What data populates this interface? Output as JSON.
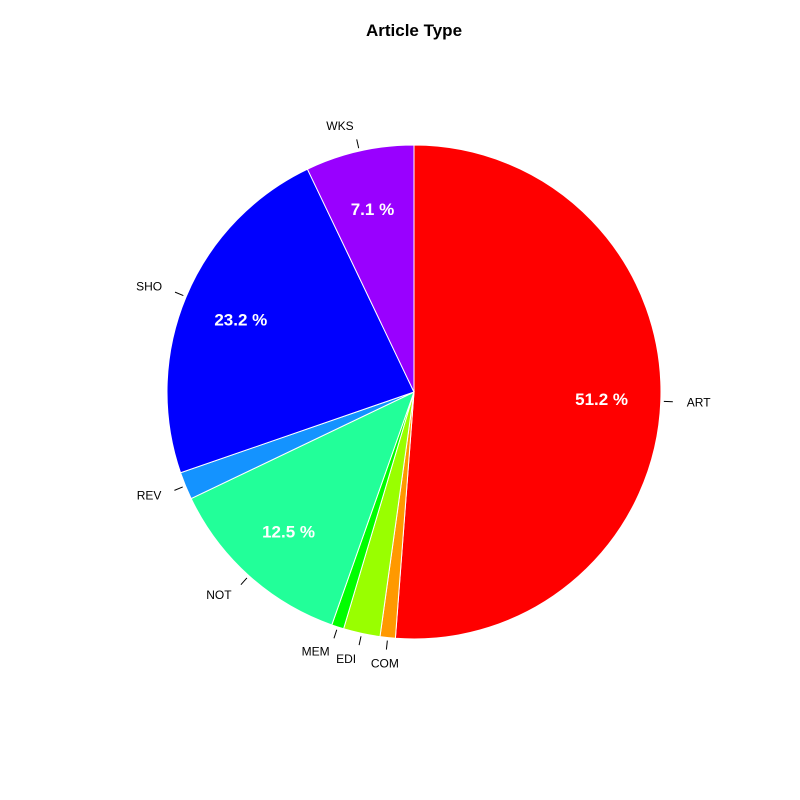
{
  "chart_data": {
    "type": "pie",
    "title": "Article Type",
    "direction": "clockwise",
    "start": "top",
    "slices": [
      {
        "label": "ART",
        "value": 51.2,
        "pct_label": "51.2 %",
        "color": "#ff0000"
      },
      {
        "label": "COM",
        "value": 1.0,
        "pct_label": "",
        "color": "#ff9900"
      },
      {
        "label": "EDI",
        "value": 2.4,
        "pct_label": "",
        "color": "#99ff00"
      },
      {
        "label": "MEM",
        "value": 0.8,
        "pct_label": "",
        "color": "#00ff00"
      },
      {
        "label": "NOT",
        "value": 12.5,
        "pct_label": "12.5 %",
        "color": "#22ff99"
      },
      {
        "label": "REV",
        "value": 1.8,
        "pct_label": "",
        "color": "#1493ff"
      },
      {
        "label": "SHO",
        "value": 23.2,
        "pct_label": "23.2 %",
        "color": "#0000ff"
      },
      {
        "label": "WKS",
        "value": 7.1,
        "pct_label": "7.1 %",
        "color": "#9900ff"
      }
    ]
  }
}
